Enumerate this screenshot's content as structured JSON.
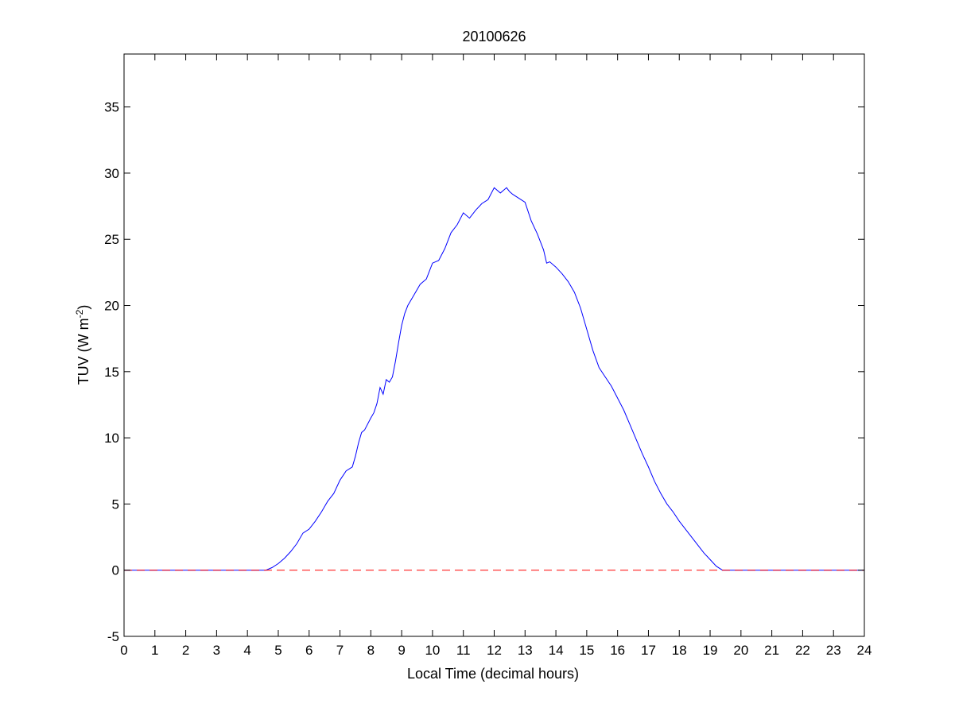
{
  "chart_data": {
    "type": "line",
    "title": "20100626",
    "xlabel": "Local Time (decimal hours)",
    "ylabel_main": "TUV (W m",
    "ylabel_sup": "-2",
    "ylabel_close": ")",
    "xlim": [
      0,
      24
    ],
    "ylim": [
      -5,
      39
    ],
    "xticks": [
      0,
      1,
      2,
      3,
      4,
      5,
      6,
      7,
      8,
      9,
      10,
      11,
      12,
      13,
      14,
      15,
      16,
      17,
      18,
      19,
      20,
      21,
      22,
      23,
      24
    ],
    "yticks": [
      -5,
      0,
      5,
      10,
      15,
      20,
      25,
      30,
      35
    ],
    "grid": false,
    "legend": "none",
    "series": [
      {
        "color": "#0000ff",
        "style": "solid",
        "x": [
          0,
          4.6,
          4.8,
          5.0,
          5.2,
          5.4,
          5.6,
          5.8,
          6.0,
          6.2,
          6.4,
          6.6,
          6.8,
          7.0,
          7.2,
          7.4,
          7.5,
          7.6,
          7.7,
          7.8,
          8.0,
          8.1,
          8.2,
          8.3,
          8.4,
          8.5,
          8.6,
          8.7,
          8.8,
          8.9,
          9.0,
          9.1,
          9.2,
          9.4,
          9.6,
          9.8,
          10.0,
          10.2,
          10.4,
          10.6,
          10.8,
          11.0,
          11.2,
          11.4,
          11.6,
          11.8,
          12.0,
          12.2,
          12.4,
          12.5,
          12.6,
          12.8,
          13.0,
          13.2,
          13.4,
          13.6,
          13.7,
          13.8,
          14.0,
          14.2,
          14.4,
          14.6,
          14.8,
          15.0,
          15.2,
          15.4,
          15.6,
          15.8,
          16.0,
          16.2,
          16.4,
          16.6,
          16.8,
          17.0,
          17.2,
          17.4,
          17.6,
          17.8,
          18.0,
          18.2,
          18.4,
          18.6,
          18.8,
          19.0,
          19.2,
          19.4,
          19.6,
          19.8,
          20.0,
          24
        ],
        "values": [
          0,
          0,
          0.2,
          0.5,
          0.9,
          1.4,
          2.0,
          2.8,
          3.1,
          3.7,
          4.4,
          5.2,
          5.8,
          6.8,
          7.5,
          7.8,
          8.6,
          9.6,
          10.4,
          10.6,
          11.5,
          11.9,
          12.6,
          13.8,
          13.3,
          14.4,
          14.2,
          14.6,
          15.8,
          17.2,
          18.5,
          19.4,
          20.0,
          20.8,
          21.6,
          22.0,
          23.2,
          23.4,
          24.3,
          25.5,
          26.1,
          27.0,
          26.6,
          27.2,
          27.7,
          28.0,
          28.9,
          28.5,
          28.9,
          28.6,
          28.4,
          28.1,
          27.8,
          26.4,
          25.4,
          24.2,
          23.2,
          23.3,
          22.9,
          22.4,
          21.8,
          21.0,
          19.8,
          18.2,
          16.6,
          15.3,
          14.6,
          13.9,
          13.0,
          12.1,
          11.0,
          9.9,
          8.8,
          7.8,
          6.7,
          5.8,
          5.0,
          4.4,
          3.7,
          3.1,
          2.5,
          1.9,
          1.3,
          0.8,
          0.3,
          0,
          0,
          0,
          0,
          0
        ]
      },
      {
        "color": "#ff0000",
        "style": "dashed",
        "x": [
          0,
          24
        ],
        "values": [
          0,
          0
        ]
      }
    ]
  }
}
